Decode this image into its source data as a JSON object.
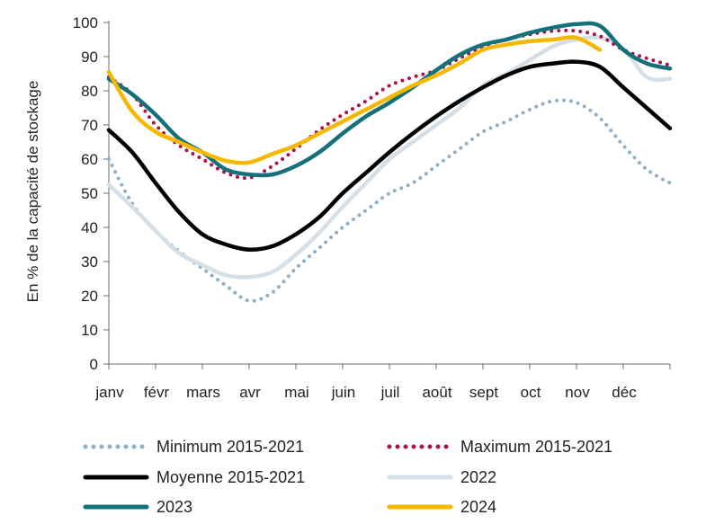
{
  "chart_data": {
    "type": "line",
    "ylabel": "En % de la capacité de stockage",
    "xlabel": "",
    "ylim": [
      0,
      100
    ],
    "yticks": [
      0,
      10,
      20,
      30,
      40,
      50,
      60,
      70,
      80,
      90,
      100
    ],
    "categories": [
      "janv",
      "févr",
      "mars",
      "avr",
      "mai",
      "juin",
      "juil",
      "août",
      "sept",
      "oct",
      "nov",
      "déc"
    ],
    "grid": false,
    "legend_position": "bottom",
    "series": [
      {
        "name": "Minimum 2015-2021",
        "color": "#8FAFC6",
        "style": "dotted",
        "x": [
          0,
          0.5,
          1,
          1.5,
          2,
          2.5,
          3,
          3.5,
          4,
          4.5,
          5,
          5.5,
          6,
          6.5,
          7,
          7.5,
          8,
          8.5,
          9,
          9.5,
          10,
          10.5,
          11,
          11.5,
          12
        ],
        "y": [
          60,
          47,
          39,
          33,
          28,
          23,
          18.5,
          21,
          28,
          34,
          40,
          45,
          50,
          53,
          58,
          63,
          68,
          71,
          74.5,
          77,
          76.5,
          72,
          64,
          57,
          53
        ]
      },
      {
        "name": "Maximum 2015-2021",
        "color": "#A8124E",
        "style": "dotted",
        "x": [
          0,
          0.5,
          1,
          1.5,
          2,
          2.5,
          3,
          3.5,
          4,
          4.5,
          5,
          5.5,
          6,
          6.5,
          7,
          7.5,
          8,
          8.5,
          9,
          9.5,
          10,
          10.5,
          11,
          11.5,
          12
        ],
        "y": [
          84,
          79,
          70,
          64,
          60,
          56,
          54.5,
          58,
          63,
          68.5,
          73,
          77,
          81.5,
          84,
          86,
          89.5,
          93,
          95,
          96.5,
          97.5,
          97.5,
          96,
          92,
          89.5,
          87.5
        ]
      },
      {
        "name": "Moyenne 2015-2021",
        "color": "#000000",
        "style": "solid",
        "x": [
          0,
          0.5,
          1,
          1.5,
          2,
          2.5,
          3,
          3.5,
          4,
          4.5,
          5,
          5.5,
          6,
          6.5,
          7,
          7.5,
          8,
          8.5,
          9,
          9.5,
          10,
          10.5,
          11,
          11.5,
          12
        ],
        "y": [
          68.5,
          62,
          53,
          44.5,
          38,
          35,
          33.5,
          34.5,
          38,
          43,
          50,
          56,
          62,
          67.5,
          72.5,
          77,
          81,
          84.5,
          87,
          88,
          88.5,
          87,
          81,
          75,
          69
        ]
      },
      {
        "name": "2022",
        "color": "#D4DFE8",
        "style": "solid",
        "x": [
          0,
          0.5,
          1,
          1.5,
          2,
          2.5,
          3,
          3.5,
          4,
          4.5,
          5,
          5.5,
          6,
          6.5,
          7,
          7.5,
          8,
          8.5,
          9,
          9.5,
          10,
          10.5,
          11,
          11.5,
          12
        ],
        "y": [
          52.5,
          46,
          39,
          32.5,
          29,
          26,
          25.5,
          27,
          32,
          38.5,
          46,
          53,
          60,
          65,
          70,
          75,
          81.5,
          85,
          89,
          93,
          95,
          95.5,
          92.5,
          84,
          83.5
        ]
      },
      {
        "name": "2023",
        "color": "#15707A",
        "style": "solid",
        "x": [
          0,
          0.5,
          1,
          1.5,
          2,
          2.5,
          3,
          3.5,
          4,
          4.5,
          5,
          5.5,
          6,
          6.5,
          7,
          7.5,
          8,
          8.5,
          9,
          9.5,
          10,
          10.5,
          11,
          11.5,
          12
        ],
        "y": [
          83.5,
          79,
          73,
          66,
          62,
          57,
          55.5,
          55.5,
          58,
          62,
          67.5,
          72.5,
          76.5,
          81,
          86,
          90.5,
          93.5,
          95,
          97,
          98.5,
          99.5,
          99,
          92,
          88,
          86.5
        ]
      },
      {
        "name": "2024",
        "color": "#F5B800",
        "style": "solid",
        "x": [
          0,
          0.5,
          1,
          1.5,
          2,
          2.5,
          3,
          3.5,
          4,
          4.5,
          5,
          5.5,
          6,
          6.5,
          7,
          7.5,
          8,
          8.5,
          9,
          9.5,
          10,
          10.5
        ],
        "y": [
          85.5,
          74,
          68,
          65,
          62,
          59.5,
          59,
          61.5,
          64,
          67.5,
          71,
          74.5,
          78,
          81.5,
          84.5,
          88,
          92,
          93.5,
          94.5,
          95,
          95.5,
          92
        ]
      }
    ]
  }
}
